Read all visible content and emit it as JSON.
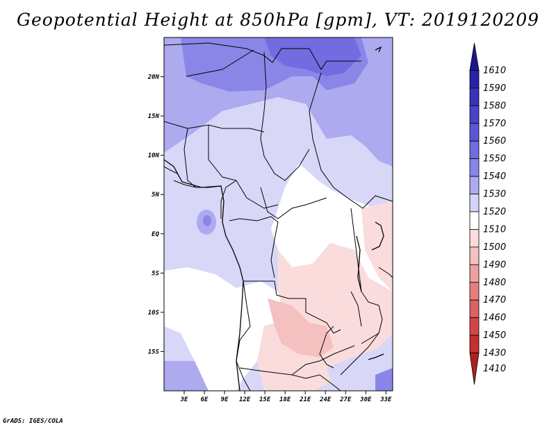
{
  "title": "Geopotential Height at 850hPa [gpm], VT: 2019120209",
  "footer": "GrADS: IGES/COLA",
  "map": {
    "lon_range": [
      0,
      34
    ],
    "lat_range": [
      -20,
      25
    ],
    "lat_ticks": [
      {
        "value": 20,
        "label": "20N"
      },
      {
        "value": 15,
        "label": "15N"
      },
      {
        "value": 10,
        "label": "10N"
      },
      {
        "value": 5,
        "label": "5N"
      },
      {
        "value": 0,
        "label": "EQ"
      },
      {
        "value": -5,
        "label": "5S"
      },
      {
        "value": -10,
        "label": "10S"
      },
      {
        "value": -15,
        "label": "15S"
      }
    ],
    "lon_ticks": [
      {
        "value": 3,
        "label": "3E"
      },
      {
        "value": 6,
        "label": "6E"
      },
      {
        "value": 9,
        "label": "9E"
      },
      {
        "value": 12,
        "label": "12E"
      },
      {
        "value": 15,
        "label": "15E"
      },
      {
        "value": 18,
        "label": "18E"
      },
      {
        "value": 21,
        "label": "21E"
      },
      {
        "value": 24,
        "label": "24E"
      },
      {
        "value": 27,
        "label": "27E"
      },
      {
        "value": 30,
        "label": "30E"
      },
      {
        "value": 33,
        "label": "33E"
      }
    ]
  },
  "colorbar": {
    "levels": [
      {
        "label": "1610",
        "color": "#1e1690"
      },
      {
        "label": "1590",
        "color": "#2a22a6"
      },
      {
        "label": "1580",
        "color": "#3a33b8"
      },
      {
        "label": "1570",
        "color": "#4a44c8"
      },
      {
        "label": "1560",
        "color": "#5c56d6"
      },
      {
        "label": "1550",
        "color": "#716ce0"
      },
      {
        "label": "1540",
        "color": "#8a86e8"
      },
      {
        "label": "1530",
        "color": "#aeaaf0"
      },
      {
        "label": "1520",
        "color": "#d5d4f8"
      },
      {
        "label": "1510",
        "color": "#ffffff"
      },
      {
        "label": "1500",
        "color": "#fadcdc"
      },
      {
        "label": "1490",
        "color": "#f5c0c0"
      },
      {
        "label": "1480",
        "color": "#eea0a0"
      },
      {
        "label": "1470",
        "color": "#e68080"
      },
      {
        "label": "1460",
        "color": "#de6060"
      },
      {
        "label": "1450",
        "color": "#d44545"
      },
      {
        "label": "1430",
        "color": "#c43030"
      },
      {
        "label": "1410",
        "color": "#b02020"
      }
    ]
  }
}
